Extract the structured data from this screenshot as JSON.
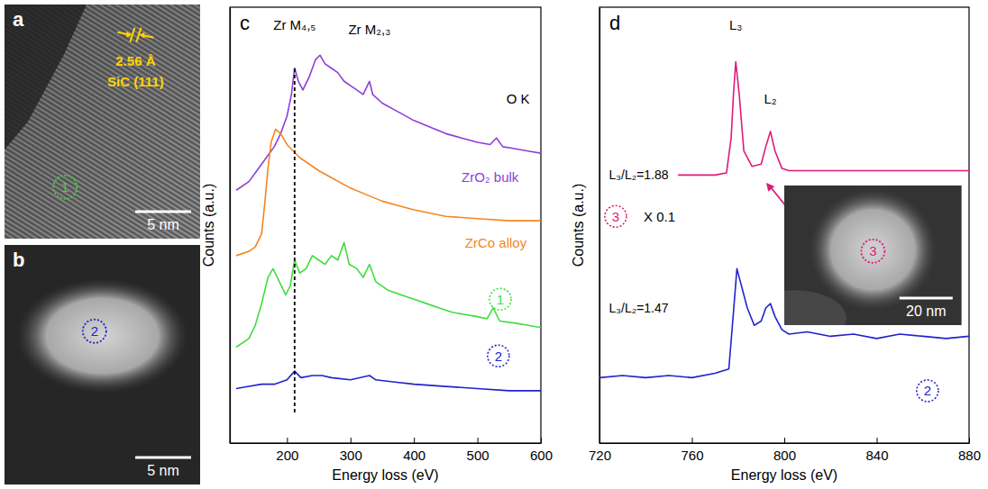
{
  "chart_data": [
    {
      "type": "image",
      "panel": "a",
      "texts": [
        "2.56 Å",
        "SiC (111)"
      ],
      "markers": [
        {
          "text": "1",
          "color": "#3fdc3f"
        }
      ],
      "scale_bar": "5 nm"
    },
    {
      "type": "image",
      "panel": "b",
      "markers": [
        {
          "text": "2",
          "color": "#2222cc"
        }
      ],
      "scale_bar": "5 nm"
    },
    {
      "type": "line",
      "panel": "c",
      "xlabel": "Energy loss (eV)",
      "ylabel": "Counts (a.u.)",
      "xlim": [
        110,
        600
      ],
      "xticks": [
        200,
        300,
        400,
        500,
        600
      ],
      "ylim": [
        0,
        100
      ],
      "yticks": [],
      "tick_labels": "x",
      "series": [
        {
          "color": "#8e3fd6",
          "x": [
            120,
            140,
            150,
            160,
            170,
            180,
            190,
            200,
            207,
            212,
            218,
            225,
            235,
            245,
            252,
            260,
            270,
            280,
            290,
            300,
            310,
            320,
            330,
            335,
            350,
            375,
            400,
            425,
            450,
            475,
            500,
            520,
            530,
            540,
            560,
            580,
            600
          ],
          "values": [
            58,
            60,
            62,
            64,
            66,
            68,
            71,
            75,
            80,
            86,
            83,
            81,
            84,
            88,
            89,
            87,
            86,
            85,
            83,
            82,
            81,
            80,
            83,
            80,
            78,
            76,
            74,
            72.5,
            71,
            70,
            69,
            68.5,
            70,
            68,
            67.5,
            67,
            66.5
          ]
        },
        {
          "color": "#f5861f",
          "x": [
            120,
            140,
            150,
            160,
            165,
            170,
            175,
            182,
            190,
            200,
            210,
            220,
            235,
            250,
            275,
            300,
            325,
            350,
            375,
            400,
            450,
            500,
            550,
            600
          ],
          "values": [
            43,
            44,
            45,
            48,
            55,
            63,
            69,
            72,
            71,
            68.5,
            67,
            65.5,
            64,
            62.5,
            60.5,
            58.5,
            57,
            55.5,
            54.5,
            53.5,
            52,
            51.5,
            51,
            51
          ]
        },
        {
          "color": "#3fdc3f",
          "x": [
            120,
            140,
            150,
            160,
            170,
            178,
            188,
            198,
            205,
            212,
            220,
            230,
            240,
            250,
            260,
            270,
            280,
            290,
            298,
            310,
            320,
            330,
            340,
            360,
            380,
            400,
            420,
            440,
            460,
            480,
            500,
            515,
            525,
            535,
            560,
            580,
            600
          ],
          "values": [
            22,
            24,
            27,
            32,
            38,
            40,
            37,
            34,
            36,
            42,
            39,
            40,
            43,
            42,
            41,
            43,
            42,
            46,
            41,
            40,
            38,
            41,
            37,
            35,
            34,
            33,
            32,
            31,
            30,
            29.5,
            29,
            28.5,
            31,
            28,
            27.5,
            27,
            26.5
          ]
        },
        {
          "color": "#2222cc",
          "x": [
            120,
            140,
            160,
            180,
            200,
            212,
            222,
            240,
            255,
            270,
            300,
            330,
            340,
            370,
            400,
            450,
            500,
            550,
            600
          ],
          "values": [
            12.5,
            13,
            13.5,
            13.5,
            14.5,
            16.5,
            15,
            15.5,
            15.5,
            15,
            14.5,
            15.5,
            14.5,
            14,
            13.5,
            13,
            12.5,
            12,
            12
          ]
        }
      ],
      "reference_lines": [
        {
          "x": 212,
          "y": [
            7,
            86
          ],
          "line_style": "dashed"
        }
      ],
      "annotations": [
        {
          "text": "Zr M₄,₅",
          "x": 212,
          "y": 96
        },
        {
          "text": "Zr M₂,₃",
          "x": 330,
          "y": 95
        },
        {
          "text": "O K",
          "x": 564,
          "y": 79
        },
        {
          "text": "ZrO₂ bulk",
          "x": 520,
          "y": 61,
          "color": "#8e3fd6"
        },
        {
          "text": "ZrCo alloy",
          "x": 529,
          "y": 46,
          "color": "#f5861f"
        },
        {
          "text": "1",
          "x": 536,
          "y": 33,
          "marker": "circle",
          "color": "#3fdc3f"
        },
        {
          "text": "2",
          "x": 533,
          "y": 20,
          "marker": "circle",
          "color": "#2222cc"
        }
      ]
    },
    {
      "type": "line",
      "panel": "d",
      "xlabel": "Energy loss (eV)",
      "ylabel": "Counts (a.u.)",
      "xlim": [
        720,
        880
      ],
      "xticks": [
        720,
        760,
        800,
        840,
        880
      ],
      "ylim": [
        0,
        100
      ],
      "yticks": [],
      "tick_labels": "x",
      "series": [
        {
          "color": "#e0197a",
          "x": [
            754,
            770,
            775,
            777,
            778,
            779,
            780.5,
            782.5,
            786,
            790,
            792,
            794,
            796,
            799,
            802,
            820,
            840,
            860,
            880
          ],
          "values": [
            61.5,
            61.5,
            62,
            70,
            80,
            87.5,
            80,
            67,
            63.5,
            64,
            68,
            71.5,
            67,
            63,
            62.5,
            62.5,
            62.5,
            62.5,
            62.5
          ]
        },
        {
          "color": "#2222cc",
          "x": [
            720,
            730,
            740,
            750,
            760,
            770,
            776,
            778,
            779.5,
            781,
            784,
            787,
            790,
            792,
            794,
            796,
            799,
            802,
            810,
            820,
            830,
            840,
            850,
            860,
            870,
            880
          ],
          "values": [
            15,
            15.5,
            15,
            15.5,
            15,
            16,
            17,
            30,
            40,
            37,
            31,
            27,
            28,
            31,
            32,
            29,
            26,
            25,
            25.5,
            24.5,
            25,
            24,
            25,
            24.5,
            24,
            24.5
          ]
        }
      ],
      "annotations": [
        {
          "text": "L₃",
          "x": 779,
          "y": 96
        },
        {
          "text": "L₂",
          "x": 794,
          "y": 79
        },
        {
          "text": "L₃/L₂=1.88",
          "x": 737,
          "y": 61.5
        },
        {
          "text": "3",
          "x": 727,
          "y": 52,
          "marker": "circle",
          "color": "#e0197a"
        },
        {
          "text": "X 0.1",
          "x": 746,
          "y": 52
        },
        {
          "text": "L₃/L₂=1.47",
          "x": 737,
          "y": 31
        },
        {
          "text": "2",
          "x": 862,
          "y": 12,
          "marker": "circle",
          "color": "#2222cc"
        }
      ],
      "inset": {
        "type": "image",
        "markers": [
          {
            "text": "3",
            "color": "#e0197a"
          }
        ],
        "scale_bar": "20 nm"
      }
    }
  ]
}
